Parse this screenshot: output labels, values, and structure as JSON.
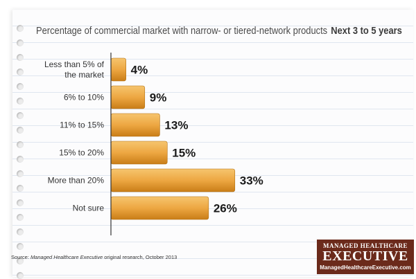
{
  "chart_data": {
    "type": "bar",
    "orientation": "horizontal",
    "title": "Percentage of commercial market with narrow- or tiered-network products",
    "subtitle": "Next 3 to 5 years",
    "categories": [
      [
        "Less than 5% of",
        "the market"
      ],
      [
        "6% to 10%"
      ],
      [
        "11% to 15%"
      ],
      [
        "15% to 20%"
      ],
      [
        "More than 20%"
      ],
      [
        "Not sure"
      ]
    ],
    "values": [
      4,
      9,
      13,
      15,
      33,
      26
    ],
    "value_labels": [
      "4%",
      "9%",
      "13%",
      "15%",
      "33%",
      "26%"
    ],
    "xlim": [
      0,
      36
    ],
    "bar_color": "#eda742",
    "grid": false
  },
  "source": {
    "prefix": "Source: ",
    "publication": "Managed Healthcare Executive",
    "rest": " original research, October 2013"
  },
  "logo": {
    "line1": "MANAGED HEALTHCARE",
    "line2": "EXECUTIVE",
    "line3": "ManagedHealthcareExecutive.com"
  }
}
